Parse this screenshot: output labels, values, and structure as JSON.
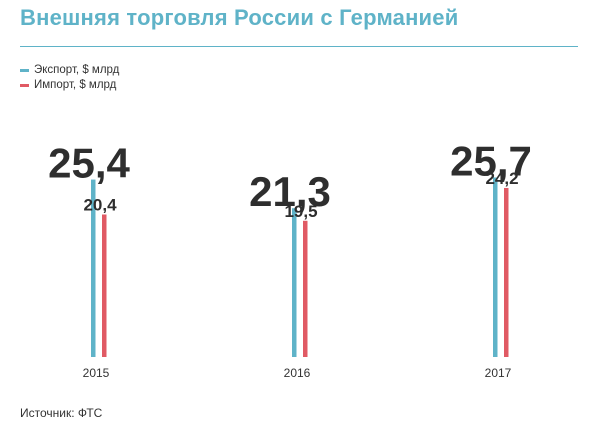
{
  "colors": {
    "title": "#5fb3c8",
    "rule": "#5fb3c8",
    "export": "#5fb3c8",
    "import": "#e05a64",
    "text": "#333333",
    "value_big": "#2e2e2e"
  },
  "header": {
    "title": "Внешняя торговля России с Германией"
  },
  "legend": [
    {
      "label": "Экспорт, $ млрд",
      "color": "#5fb3c8"
    },
    {
      "label": "Импорт, $ млрд",
      "color": "#e05a64"
    }
  ],
  "footer": {
    "source": "Источник: ФТС"
  },
  "chart_data": {
    "type": "bar",
    "categories": [
      "2015",
      "2016",
      "2017"
    ],
    "series": [
      {
        "name": "Экспорт, $ млрд",
        "values": [
          25.4,
          21.3,
          25.7
        ],
        "labels": [
          "25,4",
          "21,3",
          "25,7"
        ]
      },
      {
        "name": "Импорт, $ млрд",
        "values": [
          20.4,
          19.5,
          24.2
        ],
        "labels": [
          "20,4",
          "19,5",
          "24,2"
        ]
      }
    ],
    "title": "Внешняя торговля России с Германией",
    "xlabel": "",
    "ylabel": "",
    "ylim": [
      0,
      27.2
    ],
    "grid": false,
    "legend_position": "top-left"
  }
}
